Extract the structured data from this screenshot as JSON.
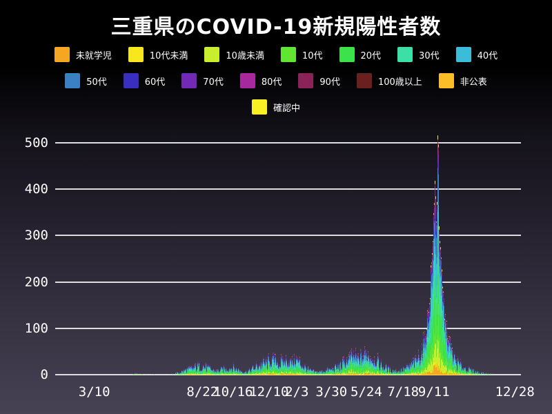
{
  "page": {
    "title": "三重県のCOVID-19新規陽性者数"
  },
  "colors": {
    "background_top": "#000000",
    "background_bottom": "#474254",
    "grid": "#dedede",
    "text": "#ffffff"
  },
  "legend": {
    "rows": [
      [
        {
          "label": "未就学児",
          "color": "#F5A623"
        },
        {
          "label": "10代未満",
          "color": "#F8E71C"
        },
        {
          "label": "10歳未満",
          "color": "#C8EE2E"
        },
        {
          "label": "10代",
          "color": "#62E432"
        },
        {
          "label": "20代",
          "color": "#3BE24B"
        },
        {
          "label": "30代",
          "color": "#3EDFA6"
        },
        {
          "label": "40代",
          "color": "#3BBCD8"
        }
      ],
      [
        {
          "label": "50代",
          "color": "#3B7FC4"
        },
        {
          "label": "60代",
          "color": "#3A2EC0"
        },
        {
          "label": "70代",
          "color": "#7229B5"
        },
        {
          "label": "80代",
          "color": "#A62A9E"
        },
        {
          "label": "90代",
          "color": "#8A2458"
        },
        {
          "label": "100歳以上",
          "color": "#6B2020"
        },
        {
          "label": "非公表",
          "color": "#FBBE28"
        }
      ],
      [
        {
          "label": "確認中",
          "color": "#F8EF25"
        }
      ]
    ]
  },
  "chart_data": {
    "type": "bar",
    "subtype": "stacked-daily-bars",
    "title": "三重県のCOVID-19新規陽性者数",
    "xlabel": "",
    "ylabel": "",
    "ylim": [
      0,
      500
    ],
    "yticks": [
      0,
      100,
      200,
      300,
      400,
      500
    ],
    "grid": "horizontal",
    "legend_position": "top",
    "xticks": [
      {
        "label": "3/10",
        "pos": 0.084
      },
      {
        "label": "8/22",
        "pos": 0.316
      },
      {
        "label": "10/16",
        "pos": 0.382
      },
      {
        "label": "12/10",
        "pos": 0.459
      },
      {
        "label": "2/3",
        "pos": 0.519
      },
      {
        "label": "3/30",
        "pos": 0.593
      },
      {
        "label": "5/24",
        "pos": 0.668
      },
      {
        "label": "7/18",
        "pos": 0.747
      },
      {
        "label": "9/11",
        "pos": 0.813
      },
      {
        "label": "12/28",
        "pos": 0.987
      }
    ],
    "series": [
      {
        "name": "未就学児",
        "color": "#F5A623",
        "share_estimate": 0.034
      },
      {
        "name": "10代未満",
        "color": "#F8E71C",
        "share_estimate": 0.02
      },
      {
        "name": "10歳未満",
        "color": "#C8EE2E",
        "share_estimate": 0.075
      },
      {
        "name": "10代",
        "color": "#62E432",
        "share_estimate": 0.13
      },
      {
        "name": "20代",
        "color": "#3BE24B",
        "share_estimate": 0.19
      },
      {
        "name": "30代",
        "color": "#3EDFA6",
        "share_estimate": 0.145
      },
      {
        "name": "40代",
        "color": "#3BBCD8",
        "share_estimate": 0.135
      },
      {
        "name": "50代",
        "color": "#3B7FC4",
        "share_estimate": 0.115
      },
      {
        "name": "60代",
        "color": "#3A2EC0",
        "share_estimate": 0.055
      },
      {
        "name": "70代",
        "color": "#7229B5",
        "share_estimate": 0.035
      },
      {
        "name": "80代",
        "color": "#A62A9E",
        "share_estimate": 0.026
      },
      {
        "name": "90代",
        "color": "#8A2458",
        "share_estimate": 0.016
      },
      {
        "name": "100歳以上",
        "color": "#6B2020",
        "share_estimate": 0.008
      },
      {
        "name": "非公表",
        "color": "#FBBE28",
        "share_estimate": 0.006
      },
      {
        "name": "確認中",
        "color": "#F8EF25",
        "share_estimate": 0.01
      }
    ],
    "profile_note": "estimated daily total new positives along x (fraction of axis) read from pixels; peak ~515 just before 9/11, secondary peak ~430",
    "profile": [
      [
        0.0,
        0
      ],
      [
        0.03,
        0.4
      ],
      [
        0.06,
        0.8
      ],
      [
        0.084,
        1.2
      ],
      [
        0.105,
        0.5
      ],
      [
        0.135,
        0.8
      ],
      [
        0.16,
        1.5
      ],
      [
        0.185,
        2
      ],
      [
        0.21,
        1.2
      ],
      [
        0.235,
        0.4
      ],
      [
        0.255,
        2
      ],
      [
        0.268,
        6
      ],
      [
        0.282,
        12
      ],
      [
        0.3,
        18
      ],
      [
        0.316,
        22
      ],
      [
        0.33,
        15
      ],
      [
        0.345,
        9
      ],
      [
        0.36,
        13
      ],
      [
        0.382,
        18
      ],
      [
        0.395,
        11
      ],
      [
        0.408,
        7
      ],
      [
        0.42,
        12
      ],
      [
        0.435,
        22
      ],
      [
        0.459,
        30
      ],
      [
        0.47,
        38
      ],
      [
        0.482,
        27
      ],
      [
        0.495,
        34
      ],
      [
        0.508,
        30
      ],
      [
        0.519,
        36
      ],
      [
        0.53,
        24
      ],
      [
        0.545,
        11
      ],
      [
        0.56,
        7
      ],
      [
        0.575,
        9
      ],
      [
        0.593,
        13
      ],
      [
        0.61,
        20
      ],
      [
        0.625,
        32
      ],
      [
        0.64,
        45
      ],
      [
        0.652,
        38
      ],
      [
        0.668,
        50
      ],
      [
        0.68,
        40
      ],
      [
        0.694,
        28
      ],
      [
        0.708,
        18
      ],
      [
        0.722,
        11
      ],
      [
        0.737,
        9
      ],
      [
        0.747,
        12
      ],
      [
        0.762,
        20
      ],
      [
        0.774,
        32
      ],
      [
        0.785,
        48
      ],
      [
        0.795,
        85
      ],
      [
        0.803,
        150
      ],
      [
        0.81,
        260
      ],
      [
        0.815,
        380
      ],
      [
        0.8165,
        430
      ],
      [
        0.818,
        350
      ],
      [
        0.82,
        330
      ],
      [
        0.8215,
        500
      ],
      [
        0.8225,
        515
      ],
      [
        0.8235,
        500
      ],
      [
        0.8245,
        340
      ],
      [
        0.827,
        280
      ],
      [
        0.831,
        200
      ],
      [
        0.838,
        120
      ],
      [
        0.846,
        72
      ],
      [
        0.856,
        42
      ],
      [
        0.866,
        26
      ],
      [
        0.88,
        16
      ],
      [
        0.895,
        10
      ],
      [
        0.91,
        6
      ],
      [
        0.925,
        3
      ],
      [
        0.94,
        1.5
      ],
      [
        0.955,
        1
      ],
      [
        0.97,
        0.8
      ],
      [
        0.987,
        0.8
      ],
      [
        1.0,
        0.3
      ]
    ]
  }
}
